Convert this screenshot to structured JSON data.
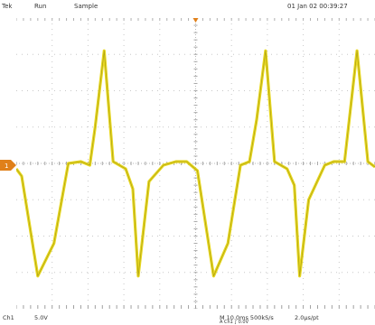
{
  "header": {
    "brand": "Tek",
    "acq_state": "Run",
    "acq_mode": "Sample",
    "datetime": "01 Jan 02 00:39:27"
  },
  "channel_marker": "1",
  "footer": {
    "channel": "Ch1",
    "volts_per_div": "5.0V",
    "horizontal": "M 10.0ms 500kS/s",
    "points": "2.0µs/pt",
    "trigger": "A Ch1 ∫ 0.0V"
  },
  "colors": {
    "trace": "#e8d820",
    "trace_core": "#9a8f10",
    "grid": "#c8c8c8",
    "marker": "#e0801a"
  },
  "chart_data": {
    "type": "line",
    "title": "",
    "xlabel": "",
    "ylabel": "",
    "x_divisions": 10,
    "y_divisions": 8,
    "grid": true,
    "series": [
      {
        "name": "",
        "x": [
          0.0,
          0.15,
          0.6,
          1.05,
          1.45,
          1.8,
          2.05,
          2.2,
          2.45,
          2.7,
          3.05,
          3.25,
          3.4,
          3.7,
          4.1,
          4.45,
          4.75,
          5.05,
          5.5,
          5.9,
          6.25,
          6.5,
          6.7,
          6.95,
          7.2,
          7.55,
          7.75,
          7.9,
          8.15,
          8.6,
          8.85,
          9.15,
          9.5,
          9.8,
          10.0
        ],
        "y": [
          -0.15,
          -0.35,
          -3.1,
          -2.2,
          0.0,
          0.05,
          -0.05,
          1.0,
          3.1,
          0.05,
          -0.15,
          -0.7,
          -3.1,
          -0.5,
          -0.05,
          0.05,
          0.05,
          -0.2,
          -3.1,
          -2.2,
          -0.05,
          0.05,
          1.2,
          3.1,
          0.05,
          -0.15,
          -0.6,
          -3.1,
          -1.0,
          -0.05,
          0.05,
          0.05,
          3.1,
          0.05,
          -0.1
        ]
      }
    ]
  }
}
